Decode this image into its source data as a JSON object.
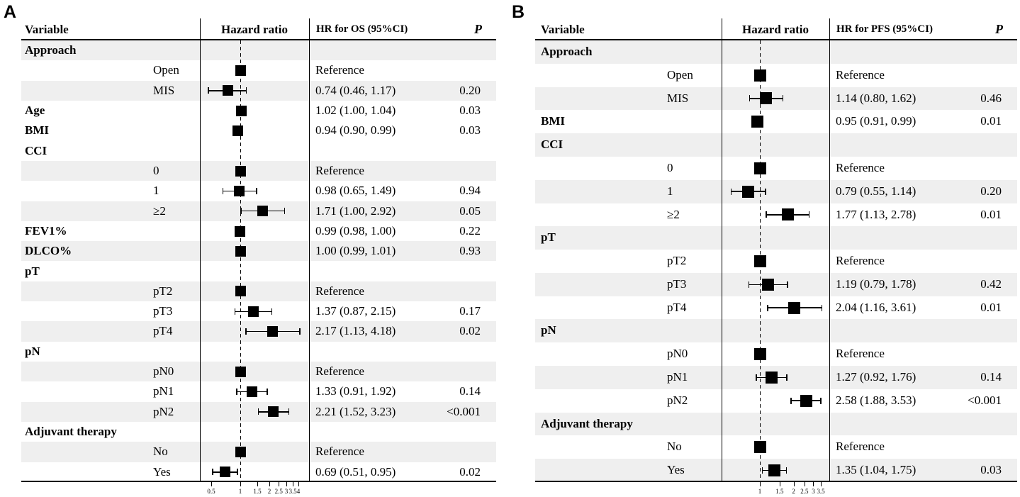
{
  "figure": {
    "background": "#ffffff",
    "stripe_color": "#efefef",
    "marker_color": "#000000"
  },
  "chart_data": [
    {
      "type": "scatter",
      "panel_label": "A",
      "columns": [
        "Variable",
        "Hazard ratio",
        "HR for OS (95%CI)",
        "P"
      ],
      "x_axis": {
        "scale": "log",
        "ticks": [
          0.5,
          1,
          1.5,
          2,
          2.5,
          3,
          3.5,
          4
        ],
        "reference_line": 1
      },
      "rows": [
        {
          "variable": "Approach",
          "shaded": true
        },
        {
          "level": "Open",
          "reference": true,
          "hr": 1.0,
          "hr_ci_text": "Reference",
          "shaded": false
        },
        {
          "level": "MIS",
          "hr": 0.74,
          "ci_low": 0.46,
          "ci_high": 1.17,
          "hr_ci_text": "0.74 (0.46, 1.17)",
          "p_text": "0.20",
          "shaded": true
        },
        {
          "variable": "Age",
          "hr": 1.02,
          "ci_low": 1.0,
          "ci_high": 1.04,
          "hr_ci_text": "1.02 (1.00, 1.04)",
          "p_text": "0.03",
          "shaded": false
        },
        {
          "variable": "BMI",
          "hr": 0.94,
          "ci_low": 0.9,
          "ci_high": 0.99,
          "hr_ci_text": "0.94 (0.90, 0.99)",
          "p_text": "0.03",
          "shaded": false
        },
        {
          "variable": "CCI",
          "shaded": false
        },
        {
          "level": "0",
          "reference": true,
          "hr": 1.0,
          "hr_ci_text": "Reference",
          "shaded": true
        },
        {
          "level": "1",
          "hr": 0.98,
          "ci_low": 0.65,
          "ci_high": 1.49,
          "hr_ci_text": "0.98 (0.65, 1.49)",
          "p_text": "0.94",
          "shaded": false
        },
        {
          "level": "≥2",
          "hr": 1.71,
          "ci_low": 1.0,
          "ci_high": 2.92,
          "hr_ci_text": "1.71 (1.00, 2.92)",
          "p_text": "0.05",
          "shaded": true
        },
        {
          "variable": "FEV1%",
          "hr": 0.99,
          "ci_low": 0.98,
          "ci_high": 1.0,
          "hr_ci_text": "0.99 (0.98, 1.00)",
          "p_text": "0.22",
          "shaded": false
        },
        {
          "variable": "DLCO%",
          "hr": 1.0,
          "ci_low": 0.99,
          "ci_high": 1.01,
          "hr_ci_text": "1.00 (0.99, 1.01)",
          "p_text": "0.93",
          "shaded": true
        },
        {
          "variable": "pT",
          "shaded": false
        },
        {
          "level": "pT2",
          "reference": true,
          "hr": 1.0,
          "hr_ci_text": "Reference",
          "shaded": true
        },
        {
          "level": "pT3",
          "hr": 1.37,
          "ci_low": 0.87,
          "ci_high": 2.15,
          "hr_ci_text": "1.37 (0.87, 2.15)",
          "p_text": "0.17",
          "shaded": false
        },
        {
          "level": "pT4",
          "hr": 2.17,
          "ci_low": 1.13,
          "ci_high": 4.18,
          "hr_ci_text": "2.17 (1.13, 4.18)",
          "p_text": "0.02",
          "shaded": true
        },
        {
          "variable": "pN",
          "shaded": false
        },
        {
          "level": "pN0",
          "reference": true,
          "hr": 1.0,
          "hr_ci_text": "Reference",
          "shaded": true
        },
        {
          "level": "pN1",
          "hr": 1.33,
          "ci_low": 0.91,
          "ci_high": 1.92,
          "hr_ci_text": "1.33 (0.91, 1.92)",
          "p_text": "0.14",
          "shaded": false
        },
        {
          "level": "pN2",
          "hr": 2.21,
          "ci_low": 1.52,
          "ci_high": 3.23,
          "hr_ci_text": "2.21 (1.52, 3.23)",
          "p_text": "<0.001",
          "shaded": true
        },
        {
          "variable": "Adjuvant therapy",
          "shaded": false
        },
        {
          "level": "No",
          "reference": true,
          "hr": 1.0,
          "hr_ci_text": "Reference",
          "shaded": true
        },
        {
          "level": "Yes",
          "hr": 0.69,
          "ci_low": 0.51,
          "ci_high": 0.95,
          "hr_ci_text": "0.69 (0.51, 0.95)",
          "p_text": "0.02",
          "shaded": false
        }
      ]
    },
    {
      "type": "scatter",
      "panel_label": "B",
      "columns": [
        "Variable",
        "Hazard ratio",
        "HR for PFS (95%CI)",
        "P"
      ],
      "x_axis": {
        "scale": "log",
        "ticks": [
          1,
          1.5,
          2,
          2.5,
          3,
          3.5
        ],
        "reference_line": 1
      },
      "rows": [
        {
          "variable": "Approach",
          "shaded": true
        },
        {
          "level": "Open",
          "reference": true,
          "hr": 1.0,
          "hr_ci_text": "Reference",
          "shaded": false
        },
        {
          "level": "MIS",
          "hr": 1.14,
          "ci_low": 0.8,
          "ci_high": 1.62,
          "hr_ci_text": "1.14 (0.80, 1.62)",
          "p_text": "0.46",
          "shaded": true
        },
        {
          "variable": "BMI",
          "hr": 0.95,
          "ci_low": 0.91,
          "ci_high": 0.99,
          "hr_ci_text": "0.95 (0.91, 0.99)",
          "p_text": "0.01",
          "shaded": false
        },
        {
          "variable": "CCI",
          "shaded": true
        },
        {
          "level": "0",
          "reference": true,
          "hr": 1.0,
          "hr_ci_text": "Reference",
          "shaded": false
        },
        {
          "level": "1",
          "hr": 0.79,
          "ci_low": 0.55,
          "ci_high": 1.14,
          "hr_ci_text": "0.79 (0.55, 1.14)",
          "p_text": "0.20",
          "shaded": true
        },
        {
          "level": "≥2",
          "hr": 1.77,
          "ci_low": 1.13,
          "ci_high": 2.78,
          "hr_ci_text": "1.77 (1.13, 2.78)",
          "p_text": "0.01",
          "shaded": false
        },
        {
          "variable": "pT",
          "shaded": true
        },
        {
          "level": "pT2",
          "reference": true,
          "hr": 1.0,
          "hr_ci_text": "Reference",
          "shaded": false
        },
        {
          "level": "pT3",
          "hr": 1.19,
          "ci_low": 0.79,
          "ci_high": 1.78,
          "hr_ci_text": "1.19 (0.79, 1.78)",
          "p_text": "0.42",
          "shaded": true
        },
        {
          "level": "pT4",
          "hr": 2.04,
          "ci_low": 1.16,
          "ci_high": 3.61,
          "hr_ci_text": "2.04 (1.16, 3.61)",
          "p_text": "0.01",
          "shaded": false
        },
        {
          "variable": "pN",
          "shaded": true
        },
        {
          "level": "pN0",
          "reference": true,
          "hr": 1.0,
          "hr_ci_text": "Reference",
          "shaded": false
        },
        {
          "level": "pN1",
          "hr": 1.27,
          "ci_low": 0.92,
          "ci_high": 1.76,
          "hr_ci_text": "1.27 (0.92, 1.76)",
          "p_text": "0.14",
          "shaded": true
        },
        {
          "level": "pN2",
          "hr": 2.58,
          "ci_low": 1.88,
          "ci_high": 3.53,
          "hr_ci_text": "2.58 (1.88, 3.53)",
          "p_text": "<0.001",
          "shaded": false
        },
        {
          "variable": "Adjuvant therapy",
          "shaded": true
        },
        {
          "level": "No",
          "reference": true,
          "hr": 1.0,
          "hr_ci_text": "Reference",
          "shaded": false
        },
        {
          "level": "Yes",
          "hr": 1.35,
          "ci_low": 1.04,
          "ci_high": 1.75,
          "hr_ci_text": "1.35 (1.04, 1.75)",
          "p_text": "0.03",
          "shaded": true
        }
      ]
    }
  ]
}
